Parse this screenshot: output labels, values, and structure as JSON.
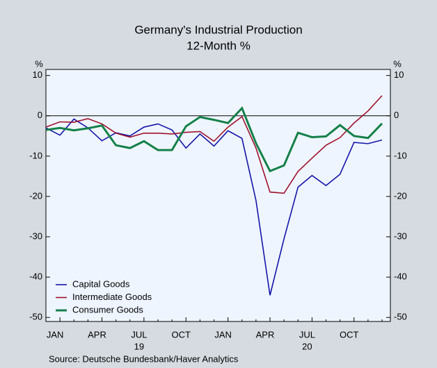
{
  "chart_data": {
    "type": "line",
    "title": "Germany's Industrial Production",
    "subtitle": "12-Month %",
    "y_unit_label": "%",
    "y2_unit_label": "%",
    "source": "Source:   Deutsche Bundesbank/Haver Analytics",
    "categories": [
      null,
      "JAN",
      null,
      null,
      "APR",
      null,
      null,
      "JUL",
      null,
      null,
      "OCT",
      null,
      null,
      "JAN",
      null,
      null,
      "APR",
      null,
      null,
      "JUL",
      null,
      null,
      "OCT",
      null,
      null
    ],
    "year_labels": [
      null,
      null,
      null,
      null,
      null,
      null,
      null,
      "19",
      null,
      null,
      null,
      null,
      null,
      null,
      null,
      null,
      null,
      null,
      null,
      "20",
      null,
      null,
      null,
      null,
      null
    ],
    "series": [
      {
        "name": "Capital Goods",
        "color": "#1414a8",
        "values": [
          -3.0,
          -4.8,
          -0.8,
          -3.0,
          -6.2,
          -4.2,
          -5.0,
          -2.8,
          -2.0,
          -3.5,
          -8.0,
          -4.5,
          -7.5,
          -3.7,
          -5.6,
          -21.0,
          -44.5,
          -30.5,
          -17.7,
          -14.8,
          -17.3,
          -14.5,
          -6.6,
          -6.9,
          -6.0
        ]
      },
      {
        "name": "Intermediate Goods",
        "color": "#a0102c",
        "values": [
          -2.8,
          -1.5,
          -1.6,
          -0.7,
          -2.0,
          -4.3,
          -5.3,
          -4.3,
          -4.3,
          -4.5,
          -4.1,
          -3.9,
          -6.3,
          -2.8,
          -0.2,
          -8.0,
          -18.9,
          -19.2,
          -13.8,
          -10.5,
          -7.3,
          -5.4,
          -1.8,
          1.2,
          5.0
        ]
      },
      {
        "name": "Consumer Goods",
        "color": "#148048",
        "values": [
          -3.5,
          -3.0,
          -3.6,
          -3.1,
          -2.4,
          -7.3,
          -8.0,
          -6.3,
          -8.5,
          -8.5,
          -2.6,
          -0.3,
          -1.0,
          -1.8,
          1.9,
          -6.8,
          -13.7,
          -12.3,
          -4.2,
          -5.3,
          -5.1,
          -2.3,
          -5.0,
          -5.5,
          -1.9
        ]
      }
    ],
    "ylim": [
      -51,
      11.5
    ],
    "yticks": [
      10,
      0,
      -10,
      -20,
      -30,
      -40,
      -50
    ],
    "y2lim": [
      -51,
      11.5
    ],
    "y2ticks": [
      10,
      0,
      -10,
      -20,
      -30,
      -40,
      -50
    ],
    "legend": "lower left"
  }
}
